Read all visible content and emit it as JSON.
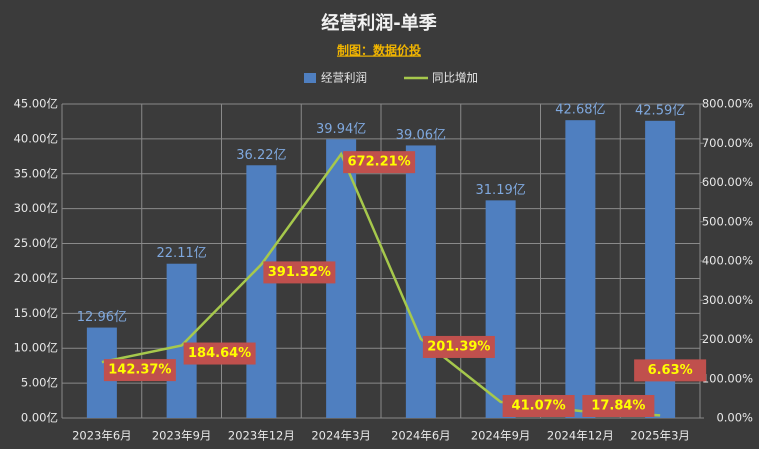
{
  "chart_data": {
    "type": "bar-line",
    "title": "经营利润-单季",
    "subtitle": "制图：数据价投",
    "categories": [
      "2023年6月",
      "2023年9月",
      "2023年12月",
      "2024年3月",
      "2024年6月",
      "2024年9月",
      "2024年12月",
      "2025年3月"
    ],
    "series": [
      {
        "name": "经营利润",
        "type": "bar",
        "color": "#4f7fc0",
        "axis": "y",
        "values": [
          12.96,
          22.11,
          36.22,
          39.94,
          39.06,
          31.19,
          42.68,
          42.59
        ],
        "value_labels": [
          "12.96亿",
          "22.11亿",
          "36.22亿",
          "39.94亿",
          "39.06亿",
          "31.19亿",
          "42.68亿",
          "42.59亿"
        ]
      },
      {
        "name": "同比增加",
        "type": "line",
        "color": "#a6c84c",
        "axis": "y2",
        "values": [
          142.37,
          184.64,
          391.32,
          672.21,
          201.39,
          41.07,
          17.84,
          6.63
        ],
        "value_labels": [
          "142.37%",
          "184.64%",
          "391.32%",
          "672.21%",
          "201.39%",
          "41.07%",
          "17.84%",
          "6.63%"
        ]
      }
    ],
    "ylim": [
      0,
      45
    ],
    "yticks": [
      {
        "value": 0,
        "label": "0.00亿"
      },
      {
        "value": 5,
        "label": "5.00亿"
      },
      {
        "value": 10,
        "label": "10.00亿"
      },
      {
        "value": 15,
        "label": "15.00亿"
      },
      {
        "value": 20,
        "label": "20.00亿"
      },
      {
        "value": 25,
        "label": "25.00亿"
      },
      {
        "value": 30,
        "label": "30.00亿"
      },
      {
        "value": 35,
        "label": "35.00亿"
      },
      {
        "value": 40,
        "label": "40.00亿"
      },
      {
        "value": 45,
        "label": "45.00亿"
      }
    ],
    "y2lim": [
      0,
      800
    ],
    "y2ticks": [
      {
        "value": 0,
        "label": "0.00%"
      },
      {
        "value": 100,
        "label": "100.00%"
      },
      {
        "value": 200,
        "label": "200.00%"
      },
      {
        "value": 300,
        "label": "300.00%"
      },
      {
        "value": 400,
        "label": "400.00%"
      },
      {
        "value": 500,
        "label": "500.00%"
      },
      {
        "value": 600,
        "label": "600.00%"
      },
      {
        "value": 700,
        "label": "700.00%"
      },
      {
        "value": 800,
        "label": "800.00%"
      }
    ],
    "grid": true,
    "legend": "top"
  }
}
